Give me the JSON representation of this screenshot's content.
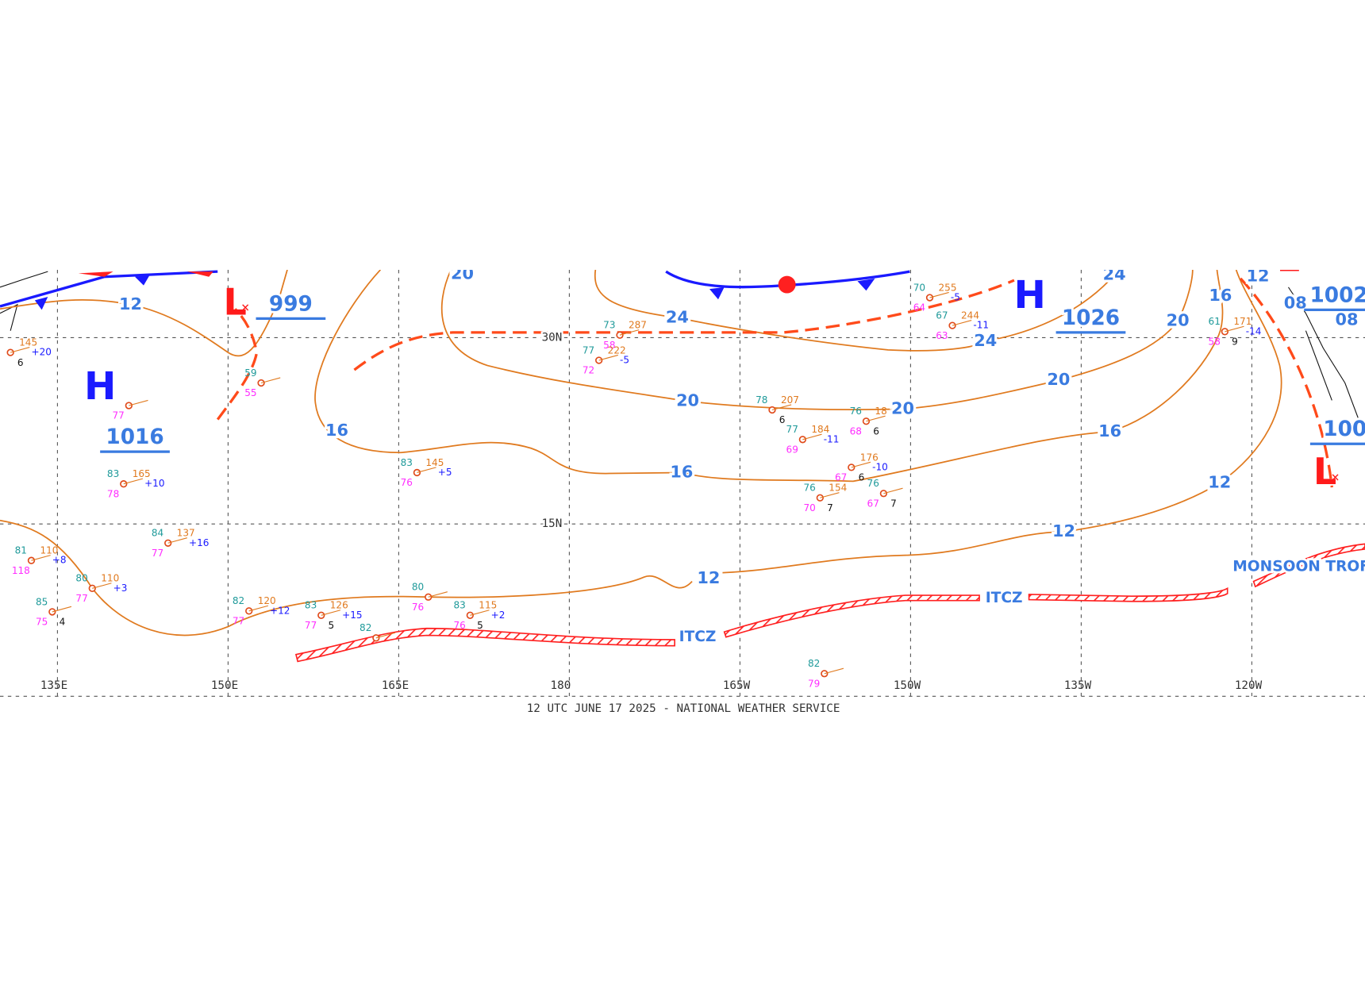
{
  "footer": "12 UTC JUNE 17 2025 - NATIONAL WEATHER SERVICE",
  "longitudes": [
    "135E",
    "150E",
    "165E",
    "180",
    "165W",
    "150W",
    "135W",
    "120W"
  ],
  "latitudes": [
    "30N",
    "15N"
  ],
  "pressure_centers": [
    {
      "symbol": "H",
      "value": "1016"
    },
    {
      "symbol": "L",
      "value": "999"
    },
    {
      "symbol": "H",
      "value": "1026"
    },
    {
      "symbol": "L",
      "value": "1002"
    },
    {
      "symbol": "L",
      "value": "100"
    }
  ],
  "isobar_labels": [
    "12",
    "12",
    "12",
    "12",
    "12",
    "16",
    "16",
    "16",
    "16",
    "20",
    "20",
    "20",
    "20",
    "20",
    "24",
    "24",
    "24",
    "08",
    "08"
  ],
  "features": [
    "ITCZ",
    "ITCZ",
    "MONSOON TROF"
  ],
  "stations": [
    {
      "temp": "83",
      "pressure": "165",
      "dewpoint": "78",
      "tendency": "+10"
    },
    {
      "temp": "83",
      "pressure": "145",
      "dewpoint": "76",
      "tendency": "+5"
    },
    {
      "temp": "78",
      "pressure": "207",
      "visibility": "6"
    },
    {
      "temp": "73",
      "pressure": "287",
      "dewpoint": "58"
    },
    {
      "temp": "77",
      "pressure": "222",
      "dewpoint": "72",
      "tendency": "-5"
    },
    {
      "temp": "70",
      "pressure": "255",
      "dewpoint": "64",
      "tendency": "-5"
    },
    {
      "temp": "67",
      "pressure": "244",
      "dewpoint": "63",
      "tendency": "-11"
    },
    {
      "temp": "61",
      "pressure": "171",
      "dewpoint": "58",
      "tendency": "-14",
      "visibility": "9"
    },
    {
      "temp": "76",
      "pressure": "18",
      "dewpoint": "68",
      "visibility": "6"
    },
    {
      "temp": "77",
      "pressure": "184",
      "dewpoint": "69",
      "tendency": "-11"
    },
    {
      "pressure": "176",
      "dewpoint": "67",
      "tendency": "-10",
      "visibility": "6"
    },
    {
      "temp": "76",
      "pressure": "154",
      "dewpoint": "70",
      "visibility": "7"
    },
    {
      "temp": "76",
      "dewpoint": "67",
      "visibility": "7"
    },
    {
      "temp": "84",
      "pressure": "137",
      "dewpoint": "77",
      "tendency": "+16"
    },
    {
      "temp": "80",
      "pressure": "110",
      "dewpoint": "77",
      "tendency": "+3"
    },
    {
      "temp": "82",
      "pressure": "120",
      "dewpoint": "77",
      "tendency": "+12"
    },
    {
      "temp": "83",
      "pressure": "126",
      "dewpoint": "77",
      "tendency": "+15",
      "visibility": "5"
    },
    {
      "temp": "83",
      "pressure": "115",
      "dewpoint": "76",
      "tendency": "+2",
      "visibility": "5"
    },
    {
      "temp": "80",
      "dewpoint": "76"
    },
    {
      "temp": "82"
    },
    {
      "temp": "82",
      "dewpoint": "79"
    },
    {
      "temp": "59",
      "dewpoint": "55"
    },
    {
      "dewpoint": "77"
    },
    {
      "temp": "81",
      "pressure": "110",
      "dewpoint": "118",
      "tendency": "+8"
    },
    {
      "temp": "85",
      "dewpoint": "75",
      "visibility": "4"
    },
    {
      "pressure": "145",
      "tendency": "+20",
      "visibility": "6"
    }
  ]
}
